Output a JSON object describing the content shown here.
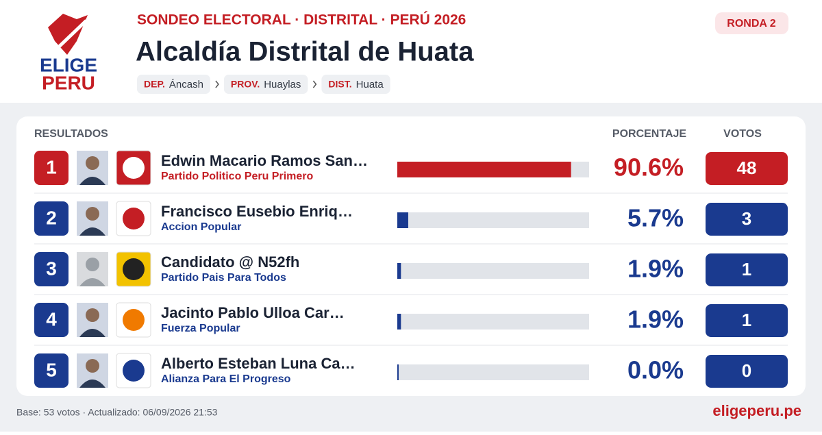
{
  "header": {
    "logo_top": "ELIGE",
    "logo_bottom": "PERU",
    "kicker": "SONDEO ELECTORAL · DISTRITAL · PERÚ 2026",
    "title": "Alcaldía Distrital de Huata",
    "round": "RONDA 2",
    "breadcrumb": [
      {
        "label": "DEP.",
        "value": "Áncash"
      },
      {
        "label": "PROV.",
        "value": "Huaylas"
      },
      {
        "label": "DIST.",
        "value": "Huata"
      }
    ]
  },
  "table": {
    "headers": [
      "RESULTADOS",
      "PORCENTAJE",
      "VOTOS"
    ],
    "highlight_color": "#c41e24",
    "color": "#1a3a8f",
    "rows": [
      {
        "rank": 1,
        "name": "Edwin Macario Ramos San…",
        "party": "Partido Politico Peru Primero",
        "percent": 90.6,
        "percent_label": "90.6%",
        "votes": 48
      },
      {
        "rank": 2,
        "name": "Francisco Eusebio Enriq…",
        "party": "Accion Popular",
        "percent": 5.7,
        "percent_label": "5.7%",
        "votes": 3
      },
      {
        "rank": 3,
        "name": "Candidato @ N52fh",
        "party": "Partido Pais Para Todos",
        "percent": 1.9,
        "percent_label": "1.9%",
        "votes": 1
      },
      {
        "rank": 4,
        "name": "Jacinto Pablo Ulloa Car…",
        "party": "Fuerza Popular",
        "percent": 1.9,
        "percent_label": "1.9%",
        "votes": 1
      },
      {
        "rank": 5,
        "name": "Alberto Esteban Luna Ca…",
        "party": "Alianza Para El Progreso",
        "percent": 0.0,
        "percent_label": "0.0%",
        "votes": 0
      }
    ]
  },
  "footer": {
    "note": "Base: 53 votos · Actualizado: 06/09/2026 21:53",
    "site": "eligeperu.pe"
  }
}
